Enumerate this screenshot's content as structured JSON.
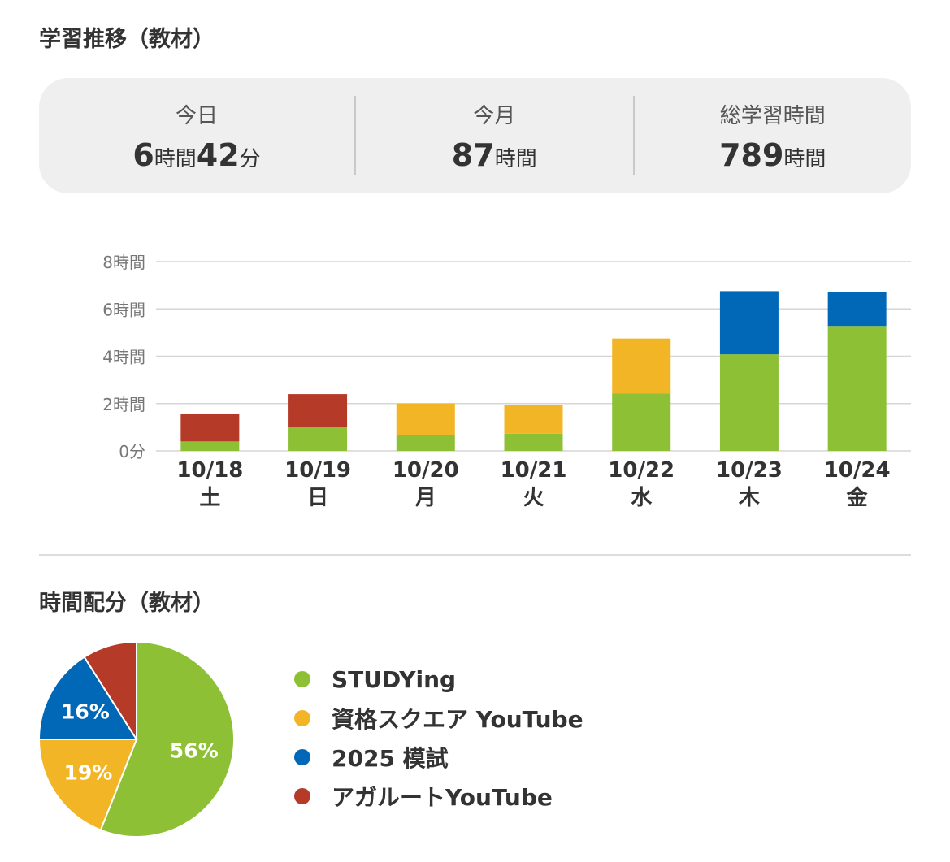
{
  "titles": {
    "trend": "学習推移（教材）",
    "distribution": "時間配分（教材）"
  },
  "stats": {
    "today": {
      "label": "今日",
      "h": "6",
      "h_unit": "時間",
      "m": "42",
      "m_unit": "分"
    },
    "month": {
      "label": "今月",
      "h": "87",
      "h_unit": "時間"
    },
    "total": {
      "label": "総学習時間",
      "h": "789",
      "h_unit": "時間"
    }
  },
  "colors": {
    "studying": "#8dc035",
    "youtube_qs": "#f2b525",
    "mock2025": "#0168b8",
    "agaroot": "#b53a28",
    "grid": "#d6d6d6",
    "axis_text": "#777777"
  },
  "chart_data": [
    {
      "type": "bar",
      "stacked": true,
      "categories": [
        "10/18",
        "10/19",
        "10/20",
        "10/21",
        "10/22",
        "10/23",
        "10/24"
      ],
      "weekdays": [
        "土",
        "日",
        "月",
        "火",
        "水",
        "木",
        "金"
      ],
      "y_ticks": [
        {
          "value": 0,
          "label": "0分"
        },
        {
          "value": 2,
          "label": "2時間"
        },
        {
          "value": 4,
          "label": "4時間"
        },
        {
          "value": 6,
          "label": "6時間"
        },
        {
          "value": 8,
          "label": "8時間"
        }
      ],
      "ylim": [
        0,
        8
      ],
      "grid": true,
      "series": [
        {
          "key": "studying",
          "values": [
            0.4,
            1.0,
            0.67,
            0.73,
            2.42,
            4.08,
            5.28
          ]
        },
        {
          "key": "youtube_qs",
          "values": [
            0,
            0,
            1.33,
            1.22,
            2.33,
            0,
            0
          ]
        },
        {
          "key": "mock2025",
          "values": [
            0,
            0,
            0,
            0,
            0,
            2.67,
            1.42
          ]
        },
        {
          "key": "agaroot",
          "values": [
            1.18,
            1.4,
            0,
            0,
            0,
            0,
            0
          ]
        }
      ]
    },
    {
      "type": "pie",
      "slices": [
        {
          "key": "studying",
          "name": "STUDYing",
          "value": 56,
          "label": "56%"
        },
        {
          "key": "youtube_qs",
          "name": "資格スクエア YouTube",
          "value": 19,
          "label": "19%"
        },
        {
          "key": "mock2025",
          "name": "2025 模試",
          "value": 16,
          "label": "16%"
        },
        {
          "key": "agaroot",
          "name": "アガルートYouTube",
          "value": 9,
          "label": ""
        }
      ]
    }
  ]
}
